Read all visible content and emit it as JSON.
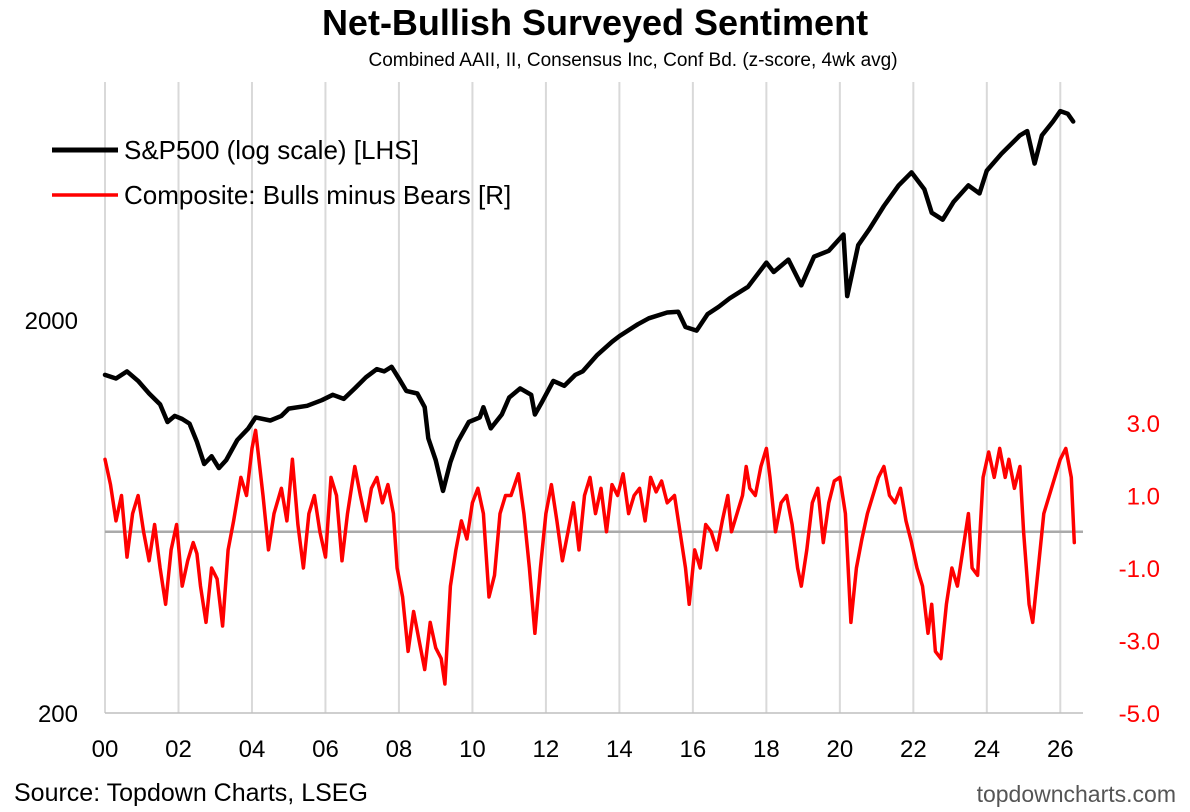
{
  "title": "Net-Bullish Surveyed Sentiment",
  "subtitle": "Combined AAII, II, Consensus Inc, Conf Bd. (z-score, 4wk avg)",
  "source": "Source: Topdown Charts, LSEG",
  "watermark": "topdowncharts.com",
  "colors": {
    "sp500": "#000000",
    "composite": "#ff0000",
    "zero_line": "#aaaaaa",
    "grid": "#d9d9d9"
  },
  "chart_data": {
    "type": "line",
    "title": "Net-Bullish Surveyed Sentiment",
    "subtitle": "Combined AAII, II, Consensus Inc, Conf Bd. (z-score, 4wk avg)",
    "grid": "vertical",
    "legend": "top-left",
    "x_axis": {
      "range": [
        2000,
        2026.4
      ],
      "ticks": [
        2000,
        2002,
        2004,
        2006,
        2008,
        2010,
        2012,
        2014,
        2016,
        2018,
        2020,
        2022,
        2024,
        2026
      ],
      "tick_labels": [
        "00",
        "02",
        "04",
        "06",
        "08",
        "10",
        "12",
        "14",
        "16",
        "18",
        "20",
        "22",
        "24",
        "26"
      ]
    },
    "y_left": {
      "scale": "log",
      "range": [
        200,
        6800
      ],
      "ticks": [
        200,
        2000
      ],
      "tick_labels": [
        "200",
        "2000"
      ]
    },
    "y_right": {
      "scale": "linear",
      "range": [
        -5,
        4.1
      ],
      "ticks": [
        3,
        1,
        -1,
        -3,
        -5
      ],
      "tick_labels": [
        "3.0",
        "1.0",
        "-1.0",
        "-3.0",
        "-5.0"
      ]
    },
    "series": [
      {
        "name": "S&P500 (log scale) [LHS]",
        "axis": "left",
        "color": "#000000",
        "points": [
          [
            2000.0,
            1450
          ],
          [
            2000.3,
            1420
          ],
          [
            2000.6,
            1480
          ],
          [
            2000.9,
            1400
          ],
          [
            2001.2,
            1300
          ],
          [
            2001.5,
            1220
          ],
          [
            2001.7,
            1100
          ],
          [
            2001.9,
            1140
          ],
          [
            2002.1,
            1120
          ],
          [
            2002.3,
            1090
          ],
          [
            2002.5,
            980
          ],
          [
            2002.7,
            860
          ],
          [
            2002.9,
            900
          ],
          [
            2003.1,
            840
          ],
          [
            2003.3,
            880
          ],
          [
            2003.6,
            990
          ],
          [
            2003.9,
            1060
          ],
          [
            2004.1,
            1130
          ],
          [
            2004.5,
            1110
          ],
          [
            2004.8,
            1140
          ],
          [
            2005.0,
            1190
          ],
          [
            2005.5,
            1210
          ],
          [
            2005.9,
            1250
          ],
          [
            2006.2,
            1290
          ],
          [
            2006.5,
            1260
          ],
          [
            2006.8,
            1340
          ],
          [
            2007.1,
            1430
          ],
          [
            2007.4,
            1500
          ],
          [
            2007.6,
            1480
          ],
          [
            2007.8,
            1520
          ],
          [
            2008.0,
            1420
          ],
          [
            2008.2,
            1320
          ],
          [
            2008.5,
            1300
          ],
          [
            2008.7,
            1200
          ],
          [
            2008.8,
            1000
          ],
          [
            2009.0,
            880
          ],
          [
            2009.2,
            735
          ],
          [
            2009.4,
            870
          ],
          [
            2009.6,
            980
          ],
          [
            2009.9,
            1100
          ],
          [
            2010.2,
            1130
          ],
          [
            2010.3,
            1200
          ],
          [
            2010.5,
            1060
          ],
          [
            2010.8,
            1150
          ],
          [
            2011.0,
            1270
          ],
          [
            2011.3,
            1340
          ],
          [
            2011.6,
            1290
          ],
          [
            2011.7,
            1150
          ],
          [
            2011.9,
            1240
          ],
          [
            2012.2,
            1400
          ],
          [
            2012.5,
            1360
          ],
          [
            2012.8,
            1450
          ],
          [
            2013.0,
            1480
          ],
          [
            2013.4,
            1630
          ],
          [
            2013.8,
            1760
          ],
          [
            2014.0,
            1820
          ],
          [
            2014.5,
            1950
          ],
          [
            2014.8,
            2020
          ],
          [
            2015.3,
            2090
          ],
          [
            2015.6,
            2100
          ],
          [
            2015.8,
            1920
          ],
          [
            2016.1,
            1880
          ],
          [
            2016.4,
            2070
          ],
          [
            2016.7,
            2160
          ],
          [
            2017.0,
            2270
          ],
          [
            2017.5,
            2430
          ],
          [
            2018.0,
            2800
          ],
          [
            2018.2,
            2650
          ],
          [
            2018.6,
            2850
          ],
          [
            2018.95,
            2450
          ],
          [
            2019.3,
            2900
          ],
          [
            2019.7,
            3000
          ],
          [
            2020.1,
            3300
          ],
          [
            2020.2,
            2300
          ],
          [
            2020.5,
            3100
          ],
          [
            2020.8,
            3400
          ],
          [
            2021.2,
            3900
          ],
          [
            2021.6,
            4400
          ],
          [
            2021.95,
            4750
          ],
          [
            2022.3,
            4300
          ],
          [
            2022.5,
            3750
          ],
          [
            2022.8,
            3600
          ],
          [
            2023.1,
            4000
          ],
          [
            2023.5,
            4400
          ],
          [
            2023.8,
            4200
          ],
          [
            2024.0,
            4800
          ],
          [
            2024.4,
            5300
          ],
          [
            2024.9,
            5900
          ],
          [
            2025.1,
            6050
          ],
          [
            2025.3,
            5000
          ],
          [
            2025.5,
            5900
          ],
          [
            2025.8,
            6400
          ],
          [
            2026.0,
            6800
          ],
          [
            2026.2,
            6700
          ],
          [
            2026.35,
            6400
          ]
        ]
      },
      {
        "name": "Composite: Bulls minus Bears [R]",
        "axis": "right",
        "color": "#ff0000",
        "points": [
          [
            2000.0,
            2.0
          ],
          [
            2000.15,
            1.3
          ],
          [
            2000.3,
            0.3
          ],
          [
            2000.45,
            1.0
          ],
          [
            2000.6,
            -0.7
          ],
          [
            2000.75,
            0.5
          ],
          [
            2000.9,
            1.0
          ],
          [
            2001.05,
            0.0
          ],
          [
            2001.2,
            -0.8
          ],
          [
            2001.35,
            0.2
          ],
          [
            2001.5,
            -1.0
          ],
          [
            2001.65,
            -2.0
          ],
          [
            2001.8,
            -0.5
          ],
          [
            2001.95,
            0.2
          ],
          [
            2002.1,
            -1.5
          ],
          [
            2002.25,
            -0.8
          ],
          [
            2002.4,
            -0.3
          ],
          [
            2002.5,
            -0.6
          ],
          [
            2002.6,
            -1.5
          ],
          [
            2002.75,
            -2.5
          ],
          [
            2002.9,
            -1.0
          ],
          [
            2003.05,
            -1.3
          ],
          [
            2003.2,
            -2.6
          ],
          [
            2003.35,
            -0.5
          ],
          [
            2003.5,
            0.3
          ],
          [
            2003.7,
            1.5
          ],
          [
            2003.85,
            1.0
          ],
          [
            2004.0,
            2.3
          ],
          [
            2004.1,
            2.8
          ],
          [
            2004.3,
            1.0
          ],
          [
            2004.45,
            -0.5
          ],
          [
            2004.6,
            0.5
          ],
          [
            2004.8,
            1.2
          ],
          [
            2004.95,
            0.3
          ],
          [
            2005.1,
            2.0
          ],
          [
            2005.25,
            0.2
          ],
          [
            2005.4,
            -1.0
          ],
          [
            2005.55,
            0.5
          ],
          [
            2005.7,
            1.0
          ],
          [
            2005.85,
            0.0
          ],
          [
            2006.0,
            -0.7
          ],
          [
            2006.15,
            1.5
          ],
          [
            2006.3,
            1.0
          ],
          [
            2006.45,
            -0.8
          ],
          [
            2006.6,
            0.5
          ],
          [
            2006.8,
            1.8
          ],
          [
            2006.95,
            1.0
          ],
          [
            2007.1,
            0.3
          ],
          [
            2007.25,
            1.2
          ],
          [
            2007.4,
            1.5
          ],
          [
            2007.55,
            0.8
          ],
          [
            2007.7,
            1.3
          ],
          [
            2007.85,
            0.5
          ],
          [
            2007.95,
            -1.0
          ],
          [
            2008.1,
            -1.8
          ],
          [
            2008.25,
            -3.3
          ],
          [
            2008.4,
            -2.2
          ],
          [
            2008.55,
            -3.0
          ],
          [
            2008.7,
            -3.8
          ],
          [
            2008.85,
            -2.5
          ],
          [
            2009.0,
            -3.2
          ],
          [
            2009.15,
            -3.5
          ],
          [
            2009.25,
            -4.2
          ],
          [
            2009.4,
            -1.5
          ],
          [
            2009.55,
            -0.5
          ],
          [
            2009.7,
            0.3
          ],
          [
            2009.85,
            -0.2
          ],
          [
            2010.0,
            0.8
          ],
          [
            2010.15,
            1.2
          ],
          [
            2010.3,
            0.5
          ],
          [
            2010.45,
            -1.8
          ],
          [
            2010.6,
            -1.2
          ],
          [
            2010.75,
            0.5
          ],
          [
            2010.9,
            1.0
          ],
          [
            2011.05,
            1.0
          ],
          [
            2011.25,
            1.6
          ],
          [
            2011.4,
            0.5
          ],
          [
            2011.55,
            -1.0
          ],
          [
            2011.7,
            -2.8
          ],
          [
            2011.85,
            -1.0
          ],
          [
            2012.0,
            0.5
          ],
          [
            2012.15,
            1.3
          ],
          [
            2012.3,
            0.3
          ],
          [
            2012.45,
            -0.8
          ],
          [
            2012.6,
            0.0
          ],
          [
            2012.75,
            0.8
          ],
          [
            2012.9,
            -0.5
          ],
          [
            2013.05,
            1.0
          ],
          [
            2013.2,
            1.5
          ],
          [
            2013.35,
            0.5
          ],
          [
            2013.5,
            1.2
          ],
          [
            2013.65,
            0.0
          ],
          [
            2013.8,
            1.3
          ],
          [
            2013.95,
            1.0
          ],
          [
            2014.1,
            1.6
          ],
          [
            2014.25,
            0.5
          ],
          [
            2014.4,
            1.0
          ],
          [
            2014.55,
            1.2
          ],
          [
            2014.7,
            0.3
          ],
          [
            2014.85,
            1.5
          ],
          [
            2015.0,
            1.1
          ],
          [
            2015.15,
            1.4
          ],
          [
            2015.3,
            0.8
          ],
          [
            2015.5,
            1.0
          ],
          [
            2015.65,
            0.0
          ],
          [
            2015.8,
            -1.0
          ],
          [
            2015.9,
            -2.0
          ],
          [
            2016.05,
            -0.5
          ],
          [
            2016.2,
            -1.0
          ],
          [
            2016.35,
            0.2
          ],
          [
            2016.5,
            0.0
          ],
          [
            2016.65,
            -0.5
          ],
          [
            2016.8,
            0.3
          ],
          [
            2016.95,
            1.0
          ],
          [
            2017.05,
            0.0
          ],
          [
            2017.2,
            0.5
          ],
          [
            2017.35,
            1.0
          ],
          [
            2017.45,
            1.8
          ],
          [
            2017.55,
            1.2
          ],
          [
            2017.7,
            1.0
          ],
          [
            2017.85,
            1.8
          ],
          [
            2018.0,
            2.3
          ],
          [
            2018.1,
            1.5
          ],
          [
            2018.25,
            0.0
          ],
          [
            2018.4,
            0.8
          ],
          [
            2018.55,
            1.0
          ],
          [
            2018.7,
            0.2
          ],
          [
            2018.85,
            -1.0
          ],
          [
            2018.95,
            -1.5
          ],
          [
            2019.1,
            -0.5
          ],
          [
            2019.25,
            0.8
          ],
          [
            2019.4,
            1.2
          ],
          [
            2019.55,
            -0.3
          ],
          [
            2019.7,
            0.8
          ],
          [
            2019.85,
            1.4
          ],
          [
            2020.0,
            1.5
          ],
          [
            2020.15,
            0.5
          ],
          [
            2020.3,
            -2.5
          ],
          [
            2020.45,
            -1.0
          ],
          [
            2020.6,
            -0.2
          ],
          [
            2020.75,
            0.5
          ],
          [
            2020.9,
            1.0
          ],
          [
            2021.05,
            1.5
          ],
          [
            2021.2,
            1.8
          ],
          [
            2021.35,
            1.0
          ],
          [
            2021.5,
            0.8
          ],
          [
            2021.65,
            1.2
          ],
          [
            2021.8,
            0.3
          ],
          [
            2021.95,
            -0.3
          ],
          [
            2022.1,
            -1.0
          ],
          [
            2022.25,
            -1.5
          ],
          [
            2022.4,
            -2.8
          ],
          [
            2022.5,
            -2.0
          ],
          [
            2022.6,
            -3.3
          ],
          [
            2022.75,
            -3.5
          ],
          [
            2022.9,
            -2.0
          ],
          [
            2023.05,
            -1.0
          ],
          [
            2023.2,
            -1.5
          ],
          [
            2023.35,
            -0.5
          ],
          [
            2023.5,
            0.5
          ],
          [
            2023.6,
            -1.0
          ],
          [
            2023.75,
            -1.2
          ],
          [
            2023.9,
            1.5
          ],
          [
            2024.05,
            2.2
          ],
          [
            2024.2,
            1.5
          ],
          [
            2024.35,
            2.3
          ],
          [
            2024.5,
            1.5
          ],
          [
            2024.6,
            2.0
          ],
          [
            2024.75,
            1.2
          ],
          [
            2024.9,
            1.8
          ],
          [
            2025.0,
            0.0
          ],
          [
            2025.15,
            -2.0
          ],
          [
            2025.25,
            -2.5
          ],
          [
            2025.4,
            -1.0
          ],
          [
            2025.55,
            0.5
          ],
          [
            2025.7,
            1.0
          ],
          [
            2025.85,
            1.5
          ],
          [
            2026.0,
            2.0
          ],
          [
            2026.15,
            2.3
          ],
          [
            2026.3,
            1.5
          ],
          [
            2026.38,
            -0.3
          ]
        ]
      }
    ]
  }
}
